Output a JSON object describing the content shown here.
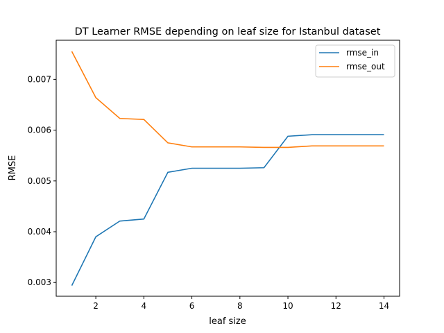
{
  "chart_data": {
    "type": "line",
    "title": "DT Learner RMSE depending on leaf size for Istanbul dataset",
    "xlabel": "leaf size",
    "ylabel": "RMSE",
    "x": [
      1,
      2,
      3,
      4,
      5,
      6,
      7,
      8,
      9,
      10,
      11,
      12,
      13,
      14
    ],
    "xlim": [
      0.35,
      14.65
    ],
    "ylim": [
      0.00273,
      0.00777
    ],
    "xticks": [
      2,
      4,
      6,
      8,
      10,
      12,
      14
    ],
    "xtick_labels": [
      "2",
      "4",
      "6",
      "8",
      "10",
      "12",
      "14"
    ],
    "yticks": [
      0.003,
      0.004,
      0.005,
      0.006,
      0.007
    ],
    "ytick_labels": [
      "0.003",
      "0.004",
      "0.005",
      "0.006",
      "0.007"
    ],
    "grid": false,
    "legend_position": "top-right",
    "series": [
      {
        "name": "rmse_in",
        "color": "#1f77b4",
        "values": [
          0.00294,
          0.0039,
          0.00421,
          0.00425,
          0.00517,
          0.00525,
          0.00525,
          0.00525,
          0.00526,
          0.00588,
          0.00591,
          0.00591,
          0.00591,
          0.00591
        ]
      },
      {
        "name": "rmse_out",
        "color": "#ff7f0e",
        "values": [
          0.00755,
          0.00664,
          0.00623,
          0.00621,
          0.00575,
          0.00567,
          0.00567,
          0.00567,
          0.00566,
          0.00566,
          0.00569,
          0.00569,
          0.00569,
          0.00569
        ]
      }
    ]
  }
}
